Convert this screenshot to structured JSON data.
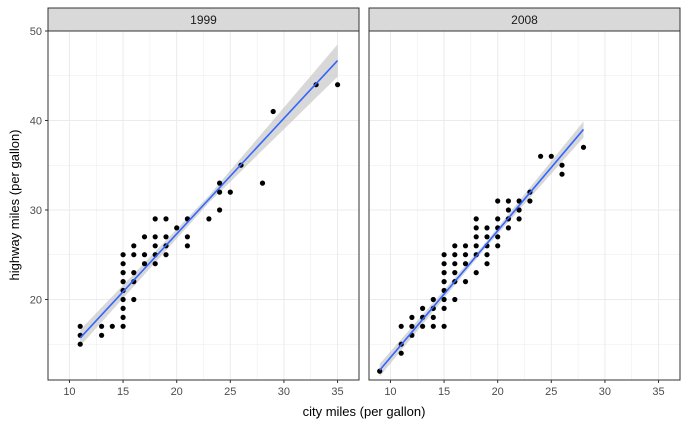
{
  "chart_data": {
    "type": "scatter",
    "xlabel": "city miles (per gallon)",
    "ylabel": "highway miles (per gallon)",
    "xlim": [
      8,
      37
    ],
    "ylim": [
      11,
      50
    ],
    "x_ticks": [
      10,
      15,
      20,
      25,
      30,
      35
    ],
    "y_ticks": [
      20,
      30,
      40,
      50
    ],
    "grid": true,
    "colors": {
      "point": "#000000",
      "smooth_line": "#3366FF",
      "confidence_band": "#bebebe",
      "strip_fill": "#d9d9d9",
      "grid": "#ebebeb",
      "panel_border": "#333333"
    },
    "panels": [
      {
        "facet": "1999",
        "points": [
          [
            11,
            17
          ],
          [
            11,
            16
          ],
          [
            11,
            15
          ],
          [
            13,
            17
          ],
          [
            13,
            16
          ],
          [
            14,
            17
          ],
          [
            15,
            25
          ],
          [
            15,
            24
          ],
          [
            15,
            23
          ],
          [
            15,
            22
          ],
          [
            15,
            21
          ],
          [
            15,
            20
          ],
          [
            15,
            19
          ],
          [
            15,
            18
          ],
          [
            15,
            17
          ],
          [
            16,
            26
          ],
          [
            16,
            25
          ],
          [
            16,
            23
          ],
          [
            16,
            22
          ],
          [
            16,
            20
          ],
          [
            17,
            27
          ],
          [
            17,
            25
          ],
          [
            17,
            24
          ],
          [
            18,
            29
          ],
          [
            18,
            27
          ],
          [
            18,
            26
          ],
          [
            18,
            25
          ],
          [
            18,
            24
          ],
          [
            19,
            29
          ],
          [
            19,
            27
          ],
          [
            19,
            26
          ],
          [
            19,
            25
          ],
          [
            20,
            28
          ],
          [
            21,
            29
          ],
          [
            21,
            27
          ],
          [
            21,
            26
          ],
          [
            23,
            29
          ],
          [
            24,
            33
          ],
          [
            24,
            32
          ],
          [
            24,
            30
          ],
          [
            25,
            32
          ],
          [
            26,
            35
          ],
          [
            28,
            33
          ],
          [
            29,
            41
          ],
          [
            33,
            44
          ],
          [
            35,
            44
          ]
        ],
        "fit": {
          "x_start": 11,
          "x_end": 35,
          "y_start": 15.7,
          "y_end": 46.7,
          "band": [
            [
              11,
              0.9
            ],
            [
              23,
              0.4
            ],
            [
              35,
              1.8
            ]
          ]
        }
      },
      {
        "facet": "2008",
        "points": [
          [
            9,
            12
          ],
          [
            11,
            17
          ],
          [
            11,
            15
          ],
          [
            11,
            14
          ],
          [
            12,
            18
          ],
          [
            12,
            17
          ],
          [
            12,
            16
          ],
          [
            13,
            19
          ],
          [
            13,
            18
          ],
          [
            13,
            17
          ],
          [
            14,
            20
          ],
          [
            14,
            19
          ],
          [
            14,
            18
          ],
          [
            14,
            17
          ],
          [
            15,
            25
          ],
          [
            15,
            24
          ],
          [
            15,
            23
          ],
          [
            15,
            22
          ],
          [
            15,
            21
          ],
          [
            15,
            20
          ],
          [
            15,
            19
          ],
          [
            15,
            17
          ],
          [
            16,
            26
          ],
          [
            16,
            25
          ],
          [
            16,
            24
          ],
          [
            16,
            23
          ],
          [
            16,
            22
          ],
          [
            16,
            20
          ],
          [
            17,
            26
          ],
          [
            17,
            25
          ],
          [
            17,
            24
          ],
          [
            17,
            22
          ],
          [
            18,
            29
          ],
          [
            18,
            28
          ],
          [
            18,
            27
          ],
          [
            18,
            26
          ],
          [
            18,
            25
          ],
          [
            18,
            23
          ],
          [
            19,
            28
          ],
          [
            19,
            27
          ],
          [
            19,
            26
          ],
          [
            19,
            25
          ],
          [
            19,
            24
          ],
          [
            20,
            31
          ],
          [
            20,
            29
          ],
          [
            20,
            28
          ],
          [
            20,
            27
          ],
          [
            20,
            26
          ],
          [
            21,
            31
          ],
          [
            21,
            30
          ],
          [
            21,
            29
          ],
          [
            21,
            28
          ],
          [
            22,
            31
          ],
          [
            22,
            30
          ],
          [
            22,
            29
          ],
          [
            23,
            32
          ],
          [
            23,
            31
          ],
          [
            24,
            36
          ],
          [
            25,
            36
          ],
          [
            26,
            35
          ],
          [
            26,
            34
          ],
          [
            28,
            37
          ]
        ],
        "fit": {
          "x_start": 9,
          "x_end": 28,
          "y_start": 12.1,
          "y_end": 39.0,
          "band": [
            [
              9,
              0.7
            ],
            [
              19,
              0.3
            ],
            [
              28,
              0.9
            ]
          ]
        }
      }
    ]
  }
}
